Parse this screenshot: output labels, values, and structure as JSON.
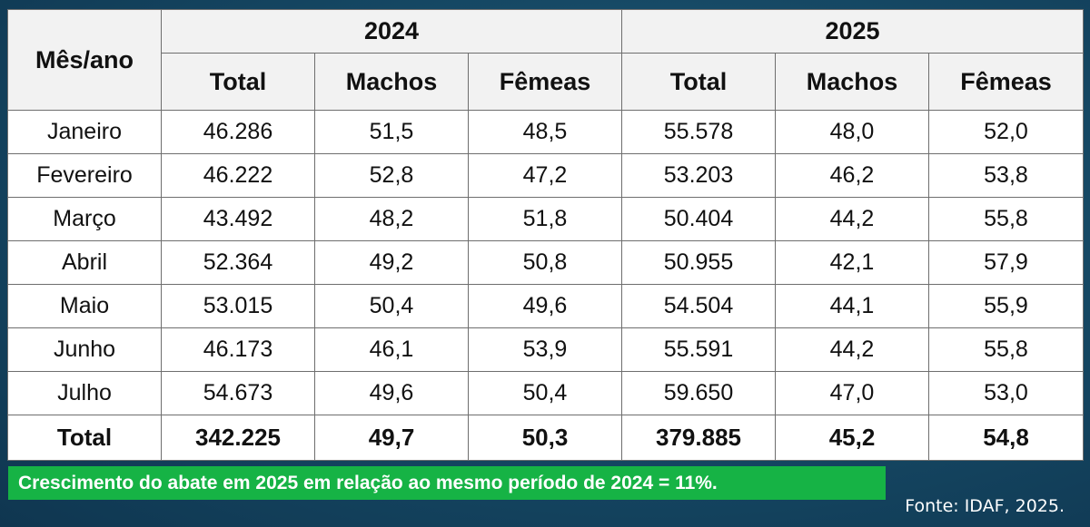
{
  "table": {
    "row_header_label": "Mês/ano",
    "years": [
      "2024",
      "2025"
    ],
    "columns": [
      "Total",
      "Machos",
      "Fêmeas",
      "Total",
      "Machos",
      "Fêmeas"
    ],
    "rows": [
      {
        "month": "Janeiro",
        "cells": [
          "46.286",
          "51,5",
          "48,5",
          "55.578",
          "48,0",
          "52,0"
        ]
      },
      {
        "month": "Fevereiro",
        "cells": [
          "46.222",
          "52,8",
          "47,2",
          "53.203",
          "46,2",
          "53,8"
        ]
      },
      {
        "month": "Março",
        "cells": [
          "43.492",
          "48,2",
          "51,8",
          "50.404",
          "44,2",
          "55,8"
        ]
      },
      {
        "month": "Abril",
        "cells": [
          "52.364",
          "49,2",
          "50,8",
          "50.955",
          "42,1",
          "57,9"
        ]
      },
      {
        "month": "Maio",
        "cells": [
          "53.015",
          "50,4",
          "49,6",
          "54.504",
          "44,1",
          "55,9"
        ]
      },
      {
        "month": "Junho",
        "cells": [
          "46.173",
          "46,1",
          "53,9",
          "55.591",
          "44,2",
          "55,8"
        ]
      },
      {
        "month": "Julho",
        "cells": [
          "54.673",
          "49,6",
          "50,4",
          "59.650",
          "47,0",
          "53,0"
        ]
      }
    ],
    "total": {
      "label": "Total",
      "cells": [
        "342.225",
        "49,7",
        "50,3",
        "379.885",
        "45,2",
        "54,8"
      ]
    }
  },
  "banner": {
    "text": "Crescimento do abate em 2025 em relação ao mesmo período de 2024 = 11%."
  },
  "source": {
    "text": "Fonte: IDAF, 2025."
  },
  "colors": {
    "background": "#164a66",
    "banner": "#16b345",
    "header_fill": "#f2f2f2"
  }
}
